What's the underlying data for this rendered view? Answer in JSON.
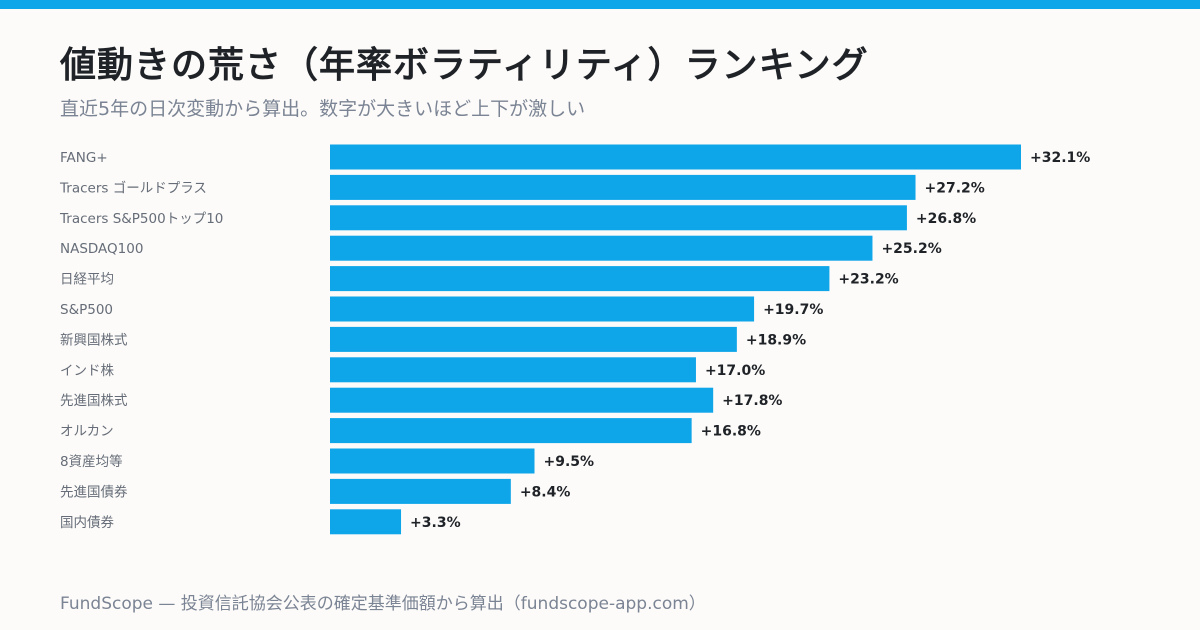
{
  "header": {
    "title": "値動きの荒さ（年率ボラティリティ）ランキング",
    "subtitle": "直近5年の日次変動から算出。数字が大きいほど上下が激しい"
  },
  "footer": {
    "text": "FundScope — 投資信託協会公表の確定基準価額から算出（fundscope-app.com）"
  },
  "colors": {
    "accent": "#0ea5e9",
    "bar": "#0ea5e9"
  },
  "chart_data": {
    "type": "bar",
    "orientation": "horizontal",
    "title": "値動きの荒さ（年率ボラティリティ）ランキング",
    "categories": [
      "FANG+",
      "Tracers ゴールドプラス",
      "Tracers S&P500トップ10",
      "NASDAQ100",
      "日経平均",
      "S&P500",
      "新興国株式",
      "インド株",
      "先進国株式",
      "オルカン",
      "8資産均等",
      "先進国債券",
      "国内債券"
    ],
    "values": [
      32.1,
      27.2,
      26.8,
      25.2,
      23.2,
      19.7,
      18.9,
      17.0,
      17.8,
      16.8,
      9.5,
      8.4,
      3.3
    ],
    "value_labels": [
      "+32.1%",
      "+27.2%",
      "+26.8%",
      "+25.2%",
      "+23.2%",
      "+19.7%",
      "+18.9%",
      "+17.0%",
      "+17.8%",
      "+16.8%",
      "+9.5%",
      "+8.4%",
      "+3.3%"
    ],
    "xlim": [
      0,
      32.1
    ],
    "grid": false,
    "legend": "none"
  }
}
